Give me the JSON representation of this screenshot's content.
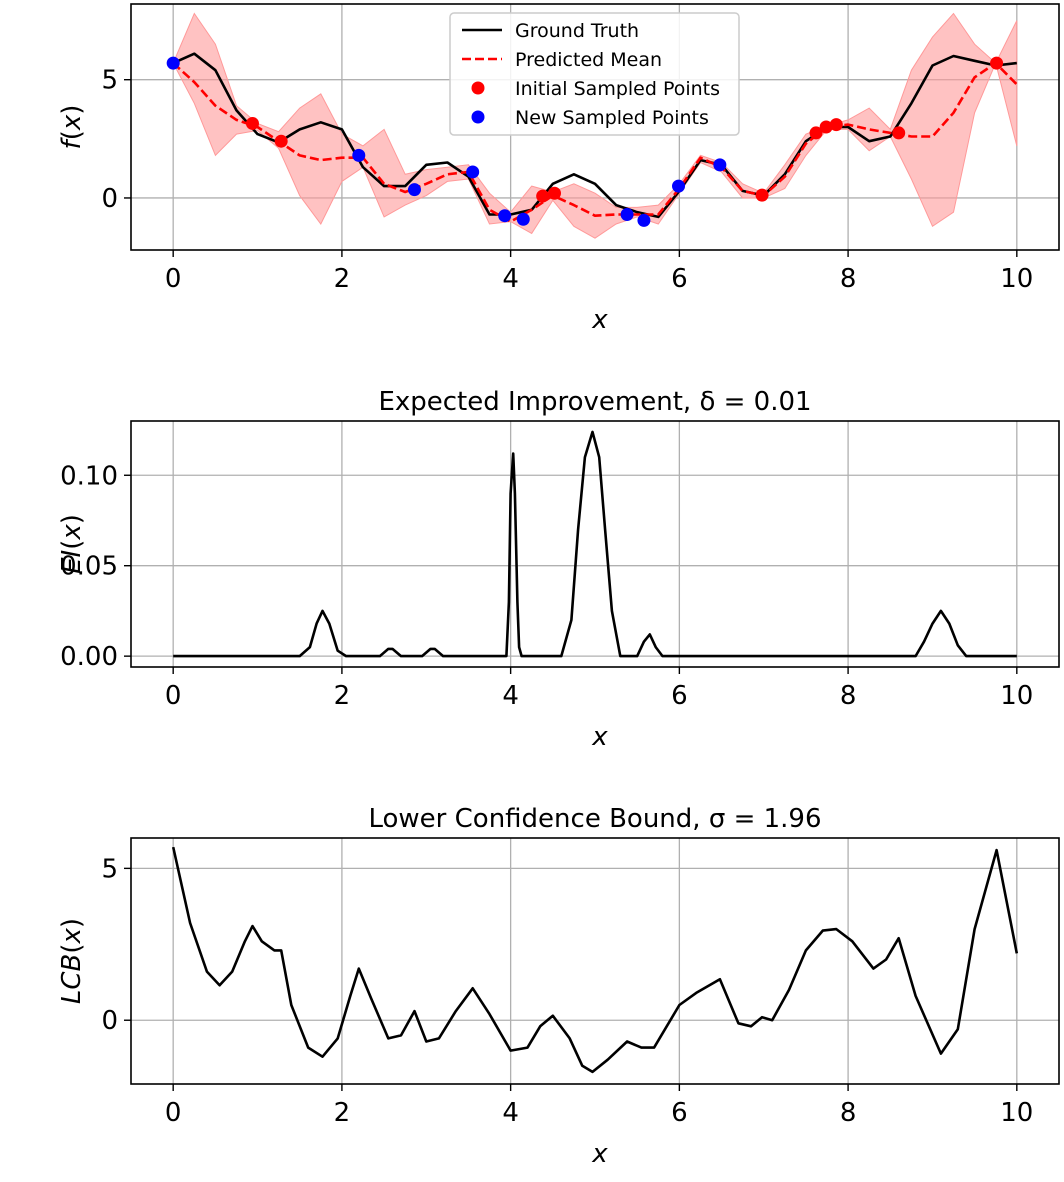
{
  "chart_data": [
    {
      "id": "gp",
      "type": "line",
      "title": "",
      "xlabel": "x",
      "ylabel": "f(x)",
      "xlim": [
        -0.5,
        10.5
      ],
      "ylim": [
        -2.2,
        8.2
      ],
      "xticks": [
        0,
        2,
        4,
        6,
        8,
        10
      ],
      "yticks": [
        0,
        5
      ],
      "grid": true,
      "legend": {
        "placement": "upper center",
        "entries": [
          "Ground Truth",
          "Predicted Mean",
          "Initial Sampled Points",
          "New Sampled Points"
        ]
      },
      "colors": {
        "truth": "#000000",
        "mean": "#ff0000",
        "band": "#ff9999",
        "initial": "#ff0000",
        "new": "#0000ff"
      },
      "ground_truth": {
        "x": [
          0,
          0.25,
          0.5,
          0.75,
          1.0,
          1.25,
          1.5,
          1.75,
          2.0,
          2.25,
          2.5,
          2.75,
          3.0,
          3.25,
          3.5,
          3.75,
          4.0,
          4.25,
          4.5,
          4.75,
          5.0,
          5.25,
          5.5,
          5.75,
          6.0,
          6.25,
          6.5,
          6.75,
          7.0,
          7.25,
          7.5,
          7.75,
          8.0,
          8.25,
          8.5,
          8.75,
          9.0,
          9.25,
          9.5,
          9.75,
          10.0
        ],
        "y": [
          5.7,
          6.1,
          5.4,
          3.7,
          2.7,
          2.35,
          2.9,
          3.2,
          2.9,
          1.3,
          0.5,
          0.5,
          1.4,
          1.5,
          0.9,
          -0.7,
          -0.7,
          -0.5,
          0.6,
          1.0,
          0.6,
          -0.3,
          -0.6,
          -0.8,
          0.3,
          1.6,
          1.4,
          0.3,
          0.1,
          1.0,
          2.4,
          3.0,
          3.0,
          2.4,
          2.6,
          4.0,
          5.6,
          6.0,
          5.8,
          5.6,
          5.7
        ]
      },
      "predicted_mean": {
        "x": [
          0,
          0.25,
          0.5,
          0.75,
          1.0,
          1.25,
          1.5,
          1.75,
          2.0,
          2.25,
          2.5,
          2.75,
          3.0,
          3.25,
          3.5,
          3.75,
          4.0,
          4.25,
          4.5,
          4.75,
          5.0,
          5.25,
          5.5,
          5.75,
          6.0,
          6.25,
          6.5,
          6.75,
          7.0,
          7.25,
          7.5,
          7.75,
          8.0,
          8.25,
          8.5,
          8.75,
          9.0,
          9.25,
          9.5,
          9.75,
          10.0
        ],
        "y": [
          5.7,
          4.9,
          3.9,
          3.3,
          3.0,
          2.4,
          1.8,
          1.6,
          1.7,
          1.7,
          0.6,
          0.25,
          0.6,
          1.0,
          1.1,
          -0.5,
          -1.0,
          -0.5,
          0.1,
          -0.3,
          -0.75,
          -0.7,
          -0.7,
          -0.7,
          0.4,
          1.7,
          1.3,
          0.3,
          0.1,
          0.9,
          2.3,
          3.0,
          3.1,
          2.9,
          2.75,
          2.6,
          2.6,
          3.6,
          5.1,
          5.7,
          4.8
        ]
      },
      "band_upper": [
        5.7,
        7.8,
        6.5,
        3.9,
        3.15,
        2.8,
        3.8,
        4.4,
        2.7,
        2.2,
        2.9,
        1.0,
        1.2,
        1.3,
        1.4,
        0.2,
        -0.6,
        0.5,
        0.25,
        0.6,
        0.2,
        -0.4,
        -0.4,
        -0.3,
        0.6,
        1.8,
        1.5,
        0.6,
        0.2,
        1.4,
        2.7,
        3.05,
        3.3,
        3.8,
        2.9,
        5.4,
        6.8,
        7.8,
        6.5,
        5.7,
        7.5
      ],
      "band_lower": [
        5.7,
        4.0,
        1.8,
        2.7,
        2.85,
        2.1,
        0.1,
        -1.1,
        0.7,
        1.3,
        -0.8,
        -0.3,
        0.1,
        0.7,
        0.8,
        -1.1,
        -1.0,
        -1.5,
        -0.1,
        -1.2,
        -1.7,
        -1.1,
        -0.8,
        -1.1,
        0.2,
        1.5,
        1.1,
        0.0,
        0.0,
        0.4,
        1.8,
        2.9,
        2.9,
        2.0,
        2.6,
        0.8,
        -1.2,
        -0.6,
        3.6,
        5.7,
        2.2
      ],
      "initial_points": {
        "x": [
          0.94,
          1.28,
          4.38,
          4.52,
          6.98,
          7.62,
          7.74,
          7.86,
          8.6,
          9.76
        ],
        "y": [
          3.15,
          2.4,
          0.08,
          0.2,
          0.12,
          2.75,
          3.0,
          3.1,
          2.75,
          5.7
        ]
      },
      "new_points": {
        "x": [
          0.0,
          2.2,
          2.86,
          3.55,
          3.93,
          4.15,
          5.38,
          5.58,
          5.99,
          6.48
        ],
        "y": [
          5.7,
          1.8,
          0.35,
          1.1,
          -0.75,
          -0.9,
          -0.7,
          -0.95,
          0.5,
          1.4
        ]
      }
    },
    {
      "id": "ei",
      "type": "line",
      "title": "Expected Improvement, δ = 0.01",
      "xlabel": "x",
      "ylabel": "EI(x)",
      "xlim": [
        -0.5,
        10.5
      ],
      "ylim": [
        -0.006,
        0.13
      ],
      "xticks": [
        0,
        2,
        4,
        6,
        8,
        10
      ],
      "yticks": [
        0.0,
        0.05,
        0.1
      ],
      "ytick_labels": [
        "0.00",
        "0.05",
        "0.10"
      ],
      "grid": true,
      "series": [
        {
          "color": "#000000",
          "x": [
            0,
            1.5,
            1.62,
            1.7,
            1.77,
            1.85,
            1.95,
            2.05,
            2.45,
            2.55,
            2.6,
            2.7,
            2.95,
            3.05,
            3.1,
            3.2,
            3.95,
            3.98,
            4.0,
            4.03,
            4.05,
            4.08,
            4.1,
            4.13,
            4.6,
            4.72,
            4.8,
            4.88,
            4.97,
            5.05,
            5.12,
            5.2,
            5.3,
            5.5,
            5.58,
            5.65,
            5.72,
            5.8,
            8.8,
            8.9,
            9.0,
            9.1,
            9.2,
            9.3,
            9.4,
            10.0
          ],
          "y": [
            0,
            0,
            0.005,
            0.018,
            0.025,
            0.018,
            0.003,
            0,
            0,
            0.004,
            0.004,
            0,
            0,
            0.004,
            0.004,
            0,
            0,
            0.03,
            0.09,
            0.112,
            0.09,
            0.03,
            0.005,
            0,
            0,
            0.02,
            0.07,
            0.11,
            0.124,
            0.11,
            0.07,
            0.025,
            0,
            0,
            0.008,
            0.012,
            0.005,
            0,
            0,
            0.008,
            0.018,
            0.025,
            0.018,
            0.006,
            0,
            0
          ]
        }
      ]
    },
    {
      "id": "lcb",
      "type": "line",
      "title": "Lower Confidence Bound, σ = 1.96",
      "xlabel": "x",
      "ylabel": "LCB(x)",
      "xlim": [
        -0.5,
        10.5
      ],
      "ylim": [
        -2.1,
        6.0
      ],
      "xticks": [
        0,
        2,
        4,
        6,
        8,
        10
      ],
      "yticks": [
        0,
        5
      ],
      "grid": true,
      "series": [
        {
          "color": "#000000",
          "x": [
            0,
            0.2,
            0.4,
            0.55,
            0.7,
            0.85,
            0.94,
            1.05,
            1.2,
            1.28,
            1.4,
            1.6,
            1.77,
            1.95,
            2.1,
            2.2,
            2.35,
            2.55,
            2.7,
            2.86,
            3.0,
            3.15,
            3.35,
            3.55,
            3.75,
            4.0,
            4.2,
            4.35,
            4.5,
            4.7,
            4.85,
            4.97,
            5.15,
            5.38,
            5.55,
            5.7,
            6.0,
            6.2,
            6.48,
            6.7,
            6.85,
            6.98,
            7.1,
            7.3,
            7.5,
            7.7,
            7.86,
            8.05,
            8.3,
            8.45,
            8.6,
            8.8,
            9.1,
            9.3,
            9.5,
            9.76,
            10.0
          ],
          "y": [
            5.7,
            3.2,
            1.6,
            1.15,
            1.6,
            2.6,
            3.1,
            2.6,
            2.3,
            2.3,
            0.5,
            -0.9,
            -1.2,
            -0.6,
            0.8,
            1.7,
            0.7,
            -0.6,
            -0.5,
            0.3,
            -0.7,
            -0.6,
            0.3,
            1.05,
            0.2,
            -1.0,
            -0.9,
            -0.2,
            0.15,
            -0.6,
            -1.5,
            -1.7,
            -1.3,
            -0.7,
            -0.9,
            -0.9,
            0.5,
            0.9,
            1.35,
            -0.1,
            -0.2,
            0.1,
            0.0,
            1.0,
            2.3,
            2.95,
            3.0,
            2.6,
            1.7,
            2.0,
            2.7,
            0.8,
            -1.1,
            -0.3,
            3.0,
            5.6,
            2.2
          ]
        }
      ]
    }
  ]
}
